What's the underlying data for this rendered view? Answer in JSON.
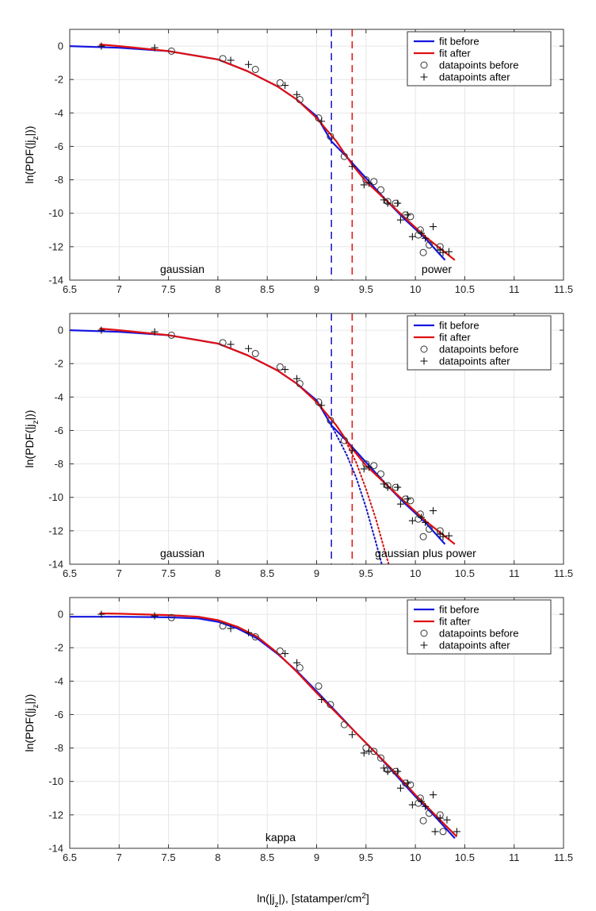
{
  "figure": {
    "xlabel_main": "ln(|j",
    "xlabel_sub": "z",
    "xlabel_rest": "|), [statamper/cm",
    "xlabel_sup": "2",
    "xlabel_end": "]"
  },
  "chart_data": [
    {
      "type": "line",
      "ylabel_main": "ln(PDF(|j",
      "ylabel_sub": "z",
      "ylabel_end": "|))",
      "xlim": [
        6.5,
        11.5
      ],
      "ylim": [
        -14,
        1
      ],
      "xticks": [
        "6.5",
        "7",
        "7.5",
        "8",
        "8.5",
        "9",
        "9.5",
        "10",
        "10.5",
        "11",
        "11.5"
      ],
      "yticks": [
        "0",
        "-2",
        "-4",
        "-6",
        "-8",
        "-10",
        "-12",
        "-14"
      ],
      "legend": {
        "position": "top-right",
        "entries": [
          "fit before",
          "fit after",
          "datapoints before",
          "datapoints after"
        ]
      },
      "annotations": [
        "gaussian",
        "power"
      ],
      "vlines": [
        {
          "x": 9.15,
          "color": "#1f1fd0",
          "name": "break-before"
        },
        {
          "x": 9.36,
          "color": "#e01818",
          "name": "break-after"
        }
      ],
      "series": [
        {
          "name": "fit before",
          "color": "#1515e0",
          "x": [
            6.5,
            7,
            7.5,
            8,
            8.3,
            8.6,
            8.8,
            9,
            9.15,
            9.3,
            9.5,
            9.7,
            9.9,
            10.1,
            10.3
          ],
          "y": [
            0,
            -0.1,
            -0.3,
            -0.8,
            -1.5,
            -2.4,
            -3.2,
            -4.2,
            -5.7,
            -6.6,
            -7.9,
            -9.2,
            -10.4,
            -11.5,
            -12.8
          ]
        },
        {
          "name": "fit after",
          "color": "#e01010",
          "x": [
            6.8,
            7,
            7.5,
            8,
            8.3,
            8.6,
            8.8,
            9,
            9.2,
            9.36,
            9.5,
            9.7,
            9.9,
            10.1,
            10.4
          ],
          "y": [
            0.1,
            0,
            -0.3,
            -0.8,
            -1.5,
            -2.4,
            -3.2,
            -4.3,
            -5.7,
            -7.1,
            -8.1,
            -9.2,
            -10.3,
            -11.4,
            -12.8
          ]
        }
      ],
      "points_before": {
        "x": [
          7.53,
          8.05,
          8.38,
          8.63,
          8.83,
          9.02,
          9.14,
          9.28,
          9.5,
          9.58,
          9.65,
          9.72,
          9.8,
          9.9,
          9.95,
          10.03,
          10.05,
          10.08,
          10.14,
          10.25
        ],
        "y": [
          -0.3,
          -0.75,
          -1.4,
          -2.2,
          -3.2,
          -4.3,
          -5.4,
          -6.6,
          -8.0,
          -8.1,
          -8.6,
          -9.3,
          -9.4,
          -10.1,
          -10.2,
          -11.3,
          -11.0,
          -12.35,
          -11.9,
          -12.0
        ]
      },
      "points_after": {
        "x": [
          6.82,
          7.36,
          8.13,
          8.31,
          8.68,
          8.8,
          9.05,
          9.36,
          9.48,
          9.53,
          9.68,
          9.72,
          9.82,
          9.85,
          9.92,
          9.97,
          10.06,
          10.1,
          10.18,
          10.25,
          10.28,
          10.34
        ],
        "y": [
          0,
          -0.1,
          -0.85,
          -1.1,
          -2.35,
          -2.9,
          -4.5,
          -7.2,
          -8.3,
          -8.2,
          -9.2,
          -9.4,
          -9.4,
          -10.4,
          -10.1,
          -11.4,
          -11.2,
          -11.5,
          -10.8,
          -12.2,
          -12.35,
          -12.3
        ]
      }
    },
    {
      "type": "line",
      "ylabel_main": "ln(PDF(|j",
      "ylabel_sub": "z",
      "ylabel_end": "|))",
      "xlim": [
        6.5,
        11.5
      ],
      "ylim": [
        -14,
        1
      ],
      "xticks": [
        "6.5",
        "7",
        "7.5",
        "8",
        "8.5",
        "9",
        "9.5",
        "10",
        "10.5",
        "11",
        "11.5"
      ],
      "yticks": [
        "0",
        "-2",
        "-4",
        "-6",
        "-8",
        "-10",
        "-12",
        "-14"
      ],
      "legend": {
        "position": "top-right",
        "entries": [
          "fit before",
          "fit after",
          "datapoints before",
          "datapoints after"
        ]
      },
      "annotations": [
        "gaussian",
        "gaussian plus power"
      ],
      "vlines": [
        {
          "x": 9.15,
          "color": "#1f1fd0",
          "name": "break-before"
        },
        {
          "x": 9.36,
          "color": "#e01818",
          "name": "break-after"
        }
      ],
      "series": [
        {
          "name": "fit before",
          "color": "#1515e0",
          "x": [
            6.5,
            7,
            7.5,
            8,
            8.3,
            8.6,
            8.8,
            9,
            9.15,
            9.3,
            9.5,
            9.7,
            9.9,
            10.1,
            10.3
          ],
          "y": [
            0,
            -0.1,
            -0.3,
            -0.8,
            -1.5,
            -2.4,
            -3.2,
            -4.2,
            -5.7,
            -6.6,
            -7.9,
            -9.2,
            -10.4,
            -11.5,
            -12.8
          ]
        },
        {
          "name": "fit after",
          "color": "#e01010",
          "x": [
            6.8,
            7,
            7.5,
            8,
            8.3,
            8.6,
            8.8,
            9,
            9.2,
            9.36,
            9.5,
            9.7,
            9.9,
            10.1,
            10.4
          ],
          "y": [
            0.1,
            0,
            -0.3,
            -0.8,
            -1.5,
            -2.4,
            -3.2,
            -4.3,
            -5.7,
            -7.1,
            -8.1,
            -9.2,
            -10.3,
            -11.4,
            -12.8
          ]
        },
        {
          "name": "gaussian extension before",
          "color": "#1515c0",
          "dotted": true,
          "x": [
            9.15,
            9.3,
            9.4,
            9.5,
            9.6,
            9.66
          ],
          "y": [
            -5.7,
            -7.4,
            -8.8,
            -10.6,
            -12.7,
            -14
          ]
        },
        {
          "name": "gaussian extension after",
          "color": "#d01010",
          "dotted": true,
          "x": [
            9.3,
            9.4,
            9.5,
            9.6,
            9.7,
            9.73
          ],
          "y": [
            -6.7,
            -7.9,
            -9.5,
            -11.3,
            -13.4,
            -14
          ]
        }
      ],
      "points_before": {
        "x": [
          7.53,
          8.05,
          8.38,
          8.63,
          8.83,
          9.02,
          9.14,
          9.28,
          9.5,
          9.58,
          9.65,
          9.72,
          9.8,
          9.9,
          9.95,
          10.03,
          10.05,
          10.08,
          10.14,
          10.25
        ],
        "y": [
          -0.3,
          -0.75,
          -1.4,
          -2.2,
          -3.2,
          -4.3,
          -5.4,
          -6.6,
          -8.0,
          -8.1,
          -8.6,
          -9.3,
          -9.4,
          -10.1,
          -10.2,
          -11.3,
          -11.0,
          -12.35,
          -11.9,
          -12.0
        ]
      },
      "points_after": {
        "x": [
          6.82,
          7.36,
          8.13,
          8.31,
          8.68,
          8.8,
          9.05,
          9.36,
          9.48,
          9.53,
          9.68,
          9.72,
          9.82,
          9.85,
          9.92,
          9.97,
          10.06,
          10.1,
          10.18,
          10.25,
          10.28,
          10.34
        ],
        "y": [
          0,
          -0.1,
          -0.85,
          -1.1,
          -2.35,
          -2.9,
          -4.5,
          -7.2,
          -8.3,
          -8.2,
          -9.2,
          -9.4,
          -9.4,
          -10.4,
          -10.1,
          -11.4,
          -11.2,
          -11.5,
          -10.8,
          -12.2,
          -12.35,
          -12.3
        ]
      }
    },
    {
      "type": "line",
      "ylabel_main": "ln(PDF(|j",
      "ylabel_sub": "z",
      "ylabel_end": "|))",
      "xlim": [
        6.5,
        11.5
      ],
      "ylim": [
        -14,
        1
      ],
      "xticks": [
        "6.5",
        "7",
        "7.5",
        "8",
        "8.5",
        "9",
        "9.5",
        "10",
        "10.5",
        "11",
        "11.5"
      ],
      "yticks": [
        "0",
        "-2",
        "-4",
        "-6",
        "-8",
        "-10",
        "-12",
        "-14"
      ],
      "legend": {
        "position": "top-right",
        "entries": [
          "fit before",
          "fit after",
          "datapoints before",
          "datapoints after"
        ]
      },
      "annotations": [
        "kappa"
      ],
      "vlines": [],
      "series": [
        {
          "name": "fit before",
          "color": "#1515e0",
          "x": [
            6.5,
            7,
            7.5,
            7.8,
            8,
            8.2,
            8.4,
            8.6,
            8.8,
            9,
            9.2,
            9.4,
            9.6,
            9.8,
            10,
            10.2,
            10.4
          ],
          "y": [
            -0.15,
            -0.15,
            -0.18,
            -0.25,
            -0.45,
            -0.85,
            -1.45,
            -2.35,
            -3.4,
            -4.6,
            -5.85,
            -7.1,
            -8.3,
            -9.6,
            -10.9,
            -12.1,
            -13.4
          ]
        },
        {
          "name": "fit after",
          "color": "#e01010",
          "x": [
            6.8,
            7,
            7.5,
            7.8,
            8,
            8.2,
            8.4,
            8.6,
            8.8,
            9,
            9.2,
            9.4,
            9.6,
            9.8,
            10,
            10.2,
            10.42
          ],
          "y": [
            0.05,
            0.03,
            -0.05,
            -0.15,
            -0.35,
            -0.75,
            -1.35,
            -2.3,
            -3.45,
            -4.7,
            -5.9,
            -7.1,
            -8.3,
            -9.5,
            -10.8,
            -12.0,
            -13.3
          ]
        }
      ],
      "points_before": {
        "x": [
          7.53,
          8.05,
          8.38,
          8.63,
          8.83,
          9.02,
          9.14,
          9.28,
          9.5,
          9.58,
          9.65,
          9.72,
          9.8,
          9.9,
          9.95,
          10.03,
          10.05,
          10.08,
          10.14,
          10.25,
          10.28
        ],
        "y": [
          -0.2,
          -0.7,
          -1.35,
          -2.2,
          -3.2,
          -4.3,
          -5.4,
          -6.6,
          -8.0,
          -8.2,
          -8.6,
          -9.3,
          -9.4,
          -10.1,
          -10.2,
          -11.3,
          -11.0,
          -12.35,
          -11.9,
          -12.0,
          -13.0
        ]
      },
      "points_after": {
        "x": [
          6.82,
          7.36,
          8.13,
          8.31,
          8.68,
          8.8,
          9.05,
          9.36,
          9.48,
          9.53,
          9.68,
          9.72,
          9.82,
          9.85,
          9.92,
          9.97,
          10.06,
          10.1,
          10.18,
          10.2,
          10.25,
          10.32,
          10.42
        ],
        "y": [
          0,
          -0.1,
          -0.85,
          -1.1,
          -2.35,
          -2.9,
          -5.1,
          -7.2,
          -8.3,
          -8.2,
          -9.2,
          -9.4,
          -9.4,
          -10.4,
          -10.1,
          -11.4,
          -11.2,
          -11.5,
          -10.8,
          -13.0,
          -12.2,
          -12.3,
          -13.0
        ]
      }
    }
  ]
}
